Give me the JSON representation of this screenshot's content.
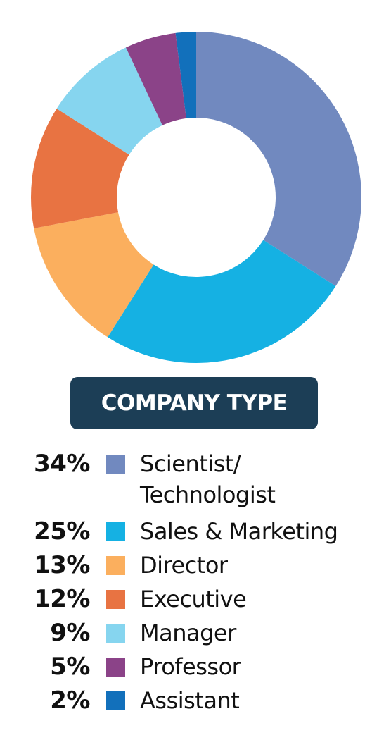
{
  "chart_data": {
    "type": "pie",
    "donut": true,
    "title": "COMPANY TYPE",
    "slices": [
      {
        "label_lines": [
          "Scientist/",
          "Technologist"
        ],
        "value": 34,
        "pct_label": "34%",
        "color": "#7189bf"
      },
      {
        "label_lines": [
          "Sales & Marketing"
        ],
        "value": 25,
        "pct_label": "25%",
        "color": "#15b1e3"
      },
      {
        "label_lines": [
          "Director"
        ],
        "value": 13,
        "pct_label": "13%",
        "color": "#fbaf5e"
      },
      {
        "label_lines": [
          "Executive"
        ],
        "value": 12,
        "pct_label": "12%",
        "color": "#e87342"
      },
      {
        "label_lines": [
          "Manager"
        ],
        "value": 9,
        "pct_label": "9%",
        "color": "#86d5ef"
      },
      {
        "label_lines": [
          "Professor"
        ],
        "value": 5,
        "pct_label": "5%",
        "color": "#8b4388"
      },
      {
        "label_lines": [
          "Assistant"
        ],
        "value": 2,
        "pct_label": "2%",
        "color": "#1270bb"
      }
    ]
  },
  "colors": {
    "title_badge": "#1c3e56",
    "title_text": "#ffffff"
  }
}
